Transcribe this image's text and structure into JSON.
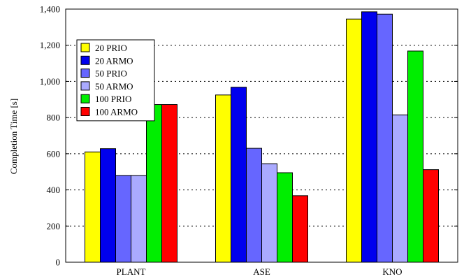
{
  "chart_data": {
    "type": "bar",
    "title": "",
    "xlabel": "",
    "ylabel": "Completion Time [s]",
    "ylim": [
      0,
      1400
    ],
    "yticks": [
      0,
      200,
      400,
      600,
      800,
      1000,
      1200,
      1400
    ],
    "ytick_labels": [
      "0",
      "200",
      "400",
      "600",
      "800",
      "1,000",
      "1,200",
      "1,400"
    ],
    "grid": "horizontal dotted",
    "legend_position": "top-left",
    "categories": [
      "PLANT",
      "ASE",
      "KNO"
    ],
    "series": [
      {
        "name": "20 PRIO",
        "color": "#ffff00",
        "values": [
          610,
          925,
          1345
        ]
      },
      {
        "name": "20 ARMO",
        "color": "#0000ee",
        "values": [
          628,
          968,
          1385
        ]
      },
      {
        "name": "50 PRIO",
        "color": "#6666ff",
        "values": [
          480,
          630,
          1372
        ]
      },
      {
        "name": "50 ARMO",
        "color": "#aaaaff",
        "values": [
          480,
          545,
          815
        ]
      },
      {
        "name": "100 PRIO",
        "color": "#00ee00",
        "values": [
          872,
          495,
          1168
        ]
      },
      {
        "name": "100 ARMO",
        "color": "#ff0000",
        "values": [
          872,
          368,
          512
        ]
      }
    ]
  }
}
